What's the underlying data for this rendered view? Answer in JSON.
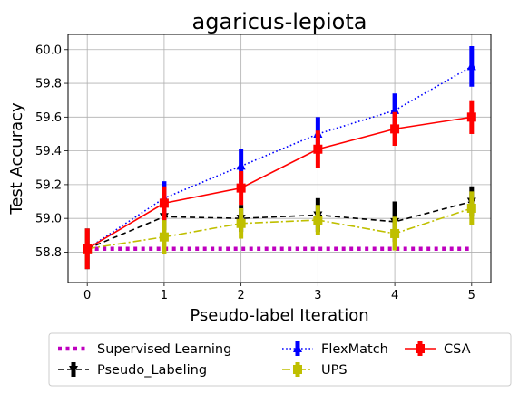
{
  "chart_data": {
    "type": "line",
    "title": "agaricus-lepiota",
    "xlabel": "Pseudo-label Iteration",
    "ylabel": "Test Accuracy",
    "x": [
      0,
      1,
      2,
      3,
      4,
      5
    ],
    "xlim": [
      -0.25,
      5.25
    ],
    "ylim": [
      58.62,
      60.09
    ],
    "xticks": [
      "0",
      "1",
      "2",
      "3",
      "4",
      "5"
    ],
    "yticks": [
      "58.8",
      "59.0",
      "59.2",
      "59.4",
      "59.6",
      "59.8",
      "60.0"
    ],
    "grid": true,
    "legend_position": "bottom",
    "series": [
      {
        "name": "Supervised Learning",
        "color": "#bf00bf",
        "style": "dotted-thick",
        "marker": "none",
        "values": [
          58.82,
          58.82,
          58.82,
          58.82,
          58.82,
          58.82
        ],
        "err": [
          0,
          0,
          0,
          0,
          0,
          0
        ]
      },
      {
        "name": "Pseudo_Labeling",
        "color": "#000000",
        "style": "dashed",
        "marker": "v",
        "values": [
          58.82,
          59.01,
          59.0,
          59.02,
          58.98,
          59.1
        ],
        "err": [
          0.12,
          0.08,
          0.08,
          0.1,
          0.12,
          0.09
        ]
      },
      {
        "name": "FlexMatch",
        "color": "#0000ff",
        "style": "dotted",
        "marker": "^",
        "values": [
          58.82,
          59.12,
          59.31,
          59.5,
          59.64,
          59.9
        ],
        "err": [
          0.12,
          0.1,
          0.1,
          0.1,
          0.1,
          0.12
        ]
      },
      {
        "name": "UPS",
        "color": "#bfbf00",
        "style": "dashdot",
        "marker": "s",
        "values": [
          58.82,
          58.89,
          58.97,
          58.99,
          58.91,
          59.06
        ],
        "err": [
          0.12,
          0.1,
          0.09,
          0.09,
          0.1,
          0.1
        ]
      },
      {
        "name": "CSA",
        "color": "#ff0000",
        "style": "solid",
        "marker": "s",
        "values": [
          58.82,
          59.09,
          59.18,
          59.41,
          59.53,
          59.6
        ],
        "err": [
          0.12,
          0.1,
          0.1,
          0.11,
          0.1,
          0.1
        ]
      }
    ]
  }
}
